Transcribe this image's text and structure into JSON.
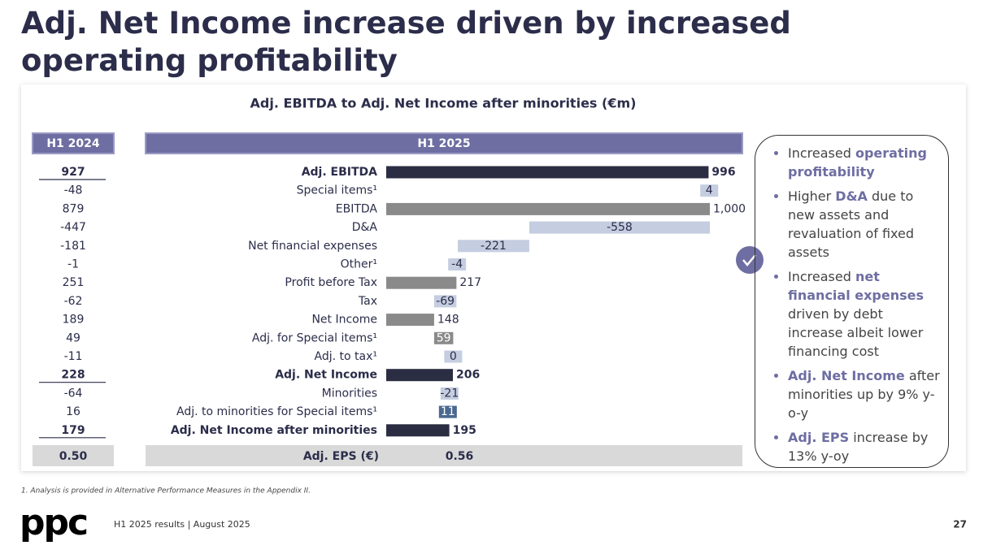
{
  "page": {
    "title": "Adj. Net Income increase driven by increased operating profitability",
    "footnote": "1. Analysis is provided in Alternative Performance Measures in the Appendix II.",
    "logo": "ppc",
    "footer": "H1 2025 results | August 2025",
    "page_number": "27",
    "bullets": [
      [
        {
          "text": "Increased ",
          "em": false
        },
        {
          "text": "operating profitability",
          "em": true
        }
      ],
      [
        {
          "text": "Higher ",
          "em": false
        },
        {
          "text": "D&A",
          "em": true
        },
        {
          "text": " due to new assets and revaluation of fixed assets",
          "em": false
        }
      ],
      [
        {
          "text": "Increased ",
          "em": false
        },
        {
          "text": "net financial expenses",
          "em": true
        },
        {
          "text": " driven by debt increase albeit lower financing cost",
          "em": false
        }
      ],
      [
        {
          "text": "Adj. Net Income",
          "em": true
        },
        {
          "text": " after minorities up by 9% y-o-y",
          "em": false
        }
      ],
      [
        {
          "text": "Adj. EPS",
          "em": true
        },
        {
          "text": " increase by 13% y-oy",
          "em": false
        }
      ]
    ]
  },
  "chart_data": {
    "type": "waterfall",
    "title": "Adj. EBITDA to Adj. Net Income after minorities (€m)",
    "prior_header": "H1 2024",
    "current_header": "H1 2025",
    "categories": [
      "Adj. EBITDA",
      "Special items¹",
      "EBITDA",
      "D&A",
      "Net financial expenses",
      "Other¹",
      "Profit before Tax",
      "Tax",
      "Net Income",
      "Adj. for Special items¹",
      "Adj. to tax¹",
      "Adj. Net Income",
      "Minorities",
      "Adj. to minorities for Special items¹",
      "Adj. Net Income after minorities"
    ],
    "values": [
      996,
      4,
      1000,
      -558,
      -221,
      -4,
      217,
      -69,
      148,
      59,
      0,
      206,
      -21,
      11,
      195
    ],
    "value_labels": [
      "996",
      "4",
      "1,000",
      "-558",
      "-221",
      "-4",
      "217",
      "-69",
      "148",
      "59",
      "0",
      "206",
      "-21",
      "11",
      "195"
    ],
    "bar_kinds": [
      "total",
      "change",
      "total",
      "change",
      "change",
      "change",
      "total",
      "change",
      "total",
      "change",
      "change",
      "total",
      "change",
      "change",
      "total"
    ],
    "colors": [
      "#2b2d42",
      "#c5cde0",
      "#8a8a8a",
      "#c5cde0",
      "#c5cde0",
      "#c5cde0",
      "#8a8a8a",
      "#c5cde0",
      "#8a8a8a",
      "#8a8a8a",
      "#c5cde0",
      "#2b2d42",
      "#c5cde0",
      "#4a6890",
      "#2b2d42"
    ],
    "bold": [
      true,
      false,
      false,
      false,
      false,
      false,
      false,
      false,
      false,
      false,
      false,
      true,
      false,
      false,
      true
    ],
    "prior_values": [
      "927",
      "-48",
      "879",
      "-447",
      "-181",
      "-1",
      "251",
      "-62",
      "189",
      "49",
      "-11",
      "228",
      "-64",
      "16",
      "179"
    ],
    "eps_label": "Adj. EPS (€)",
    "eps_prior": "0.50",
    "eps_current": "0.56",
    "xlim": [
      0,
      1000
    ]
  }
}
